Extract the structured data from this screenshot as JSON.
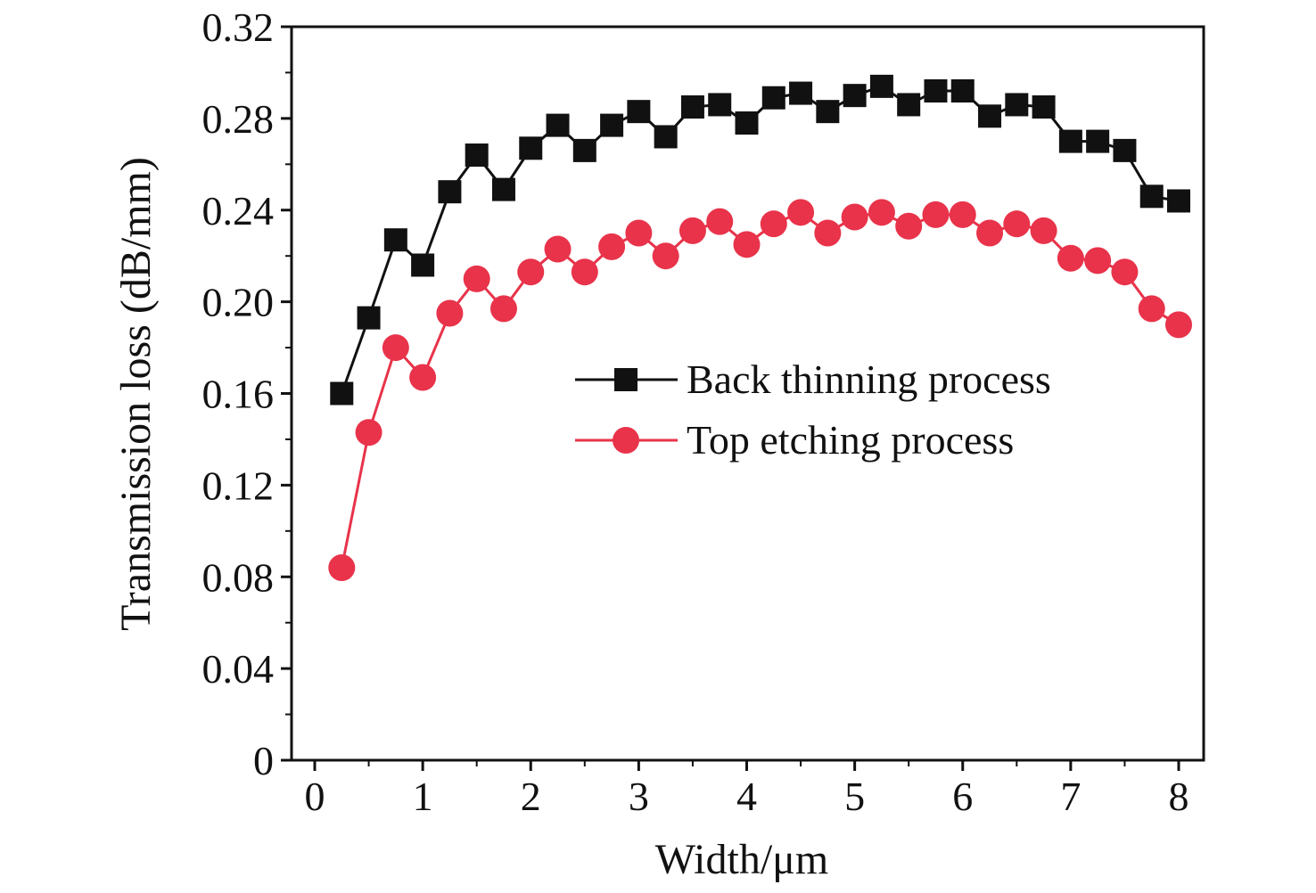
{
  "chart_data": {
    "type": "line",
    "title": "",
    "xlabel": "Width/μm",
    "ylabel": "Transmission loss (dB/mm)",
    "xlim": [
      -0.2,
      8.2
    ],
    "ylim": [
      0,
      0.32
    ],
    "xticks": [
      "0",
      "1",
      "2",
      "3",
      "4",
      "5",
      "6",
      "7",
      "8"
    ],
    "yticks": [
      "0",
      "0.04",
      "0.08",
      "0.12",
      "0.16",
      "0.20",
      "0.24",
      "0.28",
      "0.32"
    ],
    "grid": false,
    "legend_placement": "center-right",
    "x": [
      0.25,
      0.5,
      0.75,
      1.0,
      1.25,
      1.5,
      1.75,
      2.0,
      2.25,
      2.5,
      2.75,
      3.0,
      3.25,
      3.5,
      3.75,
      4.0,
      4.25,
      4.5,
      4.75,
      5.0,
      5.25,
      5.5,
      5.75,
      6.0,
      6.25,
      6.5,
      6.75,
      7.0,
      7.25,
      7.5,
      7.75,
      8.0
    ],
    "series": [
      {
        "name": "Back thinning process",
        "color": "#111111",
        "marker": "square",
        "values": [
          0.16,
          0.193,
          0.227,
          0.216,
          0.248,
          0.264,
          0.249,
          0.267,
          0.277,
          0.266,
          0.277,
          0.283,
          0.272,
          0.285,
          0.286,
          0.278,
          0.289,
          0.291,
          0.283,
          0.29,
          0.294,
          0.286,
          0.292,
          0.292,
          0.281,
          0.286,
          0.285,
          0.27,
          0.27,
          0.266,
          0.246,
          0.244
        ]
      },
      {
        "name": "Top etching process",
        "color": "#e8334a",
        "marker": "circle",
        "values": [
          0.084,
          0.143,
          0.18,
          0.167,
          0.195,
          0.21,
          0.197,
          0.213,
          0.223,
          0.213,
          0.224,
          0.23,
          0.22,
          0.231,
          0.235,
          0.225,
          0.234,
          0.239,
          0.23,
          0.237,
          0.239,
          0.233,
          0.238,
          0.238,
          0.23,
          0.234,
          0.231,
          0.219,
          0.218,
          0.213,
          0.197,
          0.19
        ]
      }
    ]
  }
}
